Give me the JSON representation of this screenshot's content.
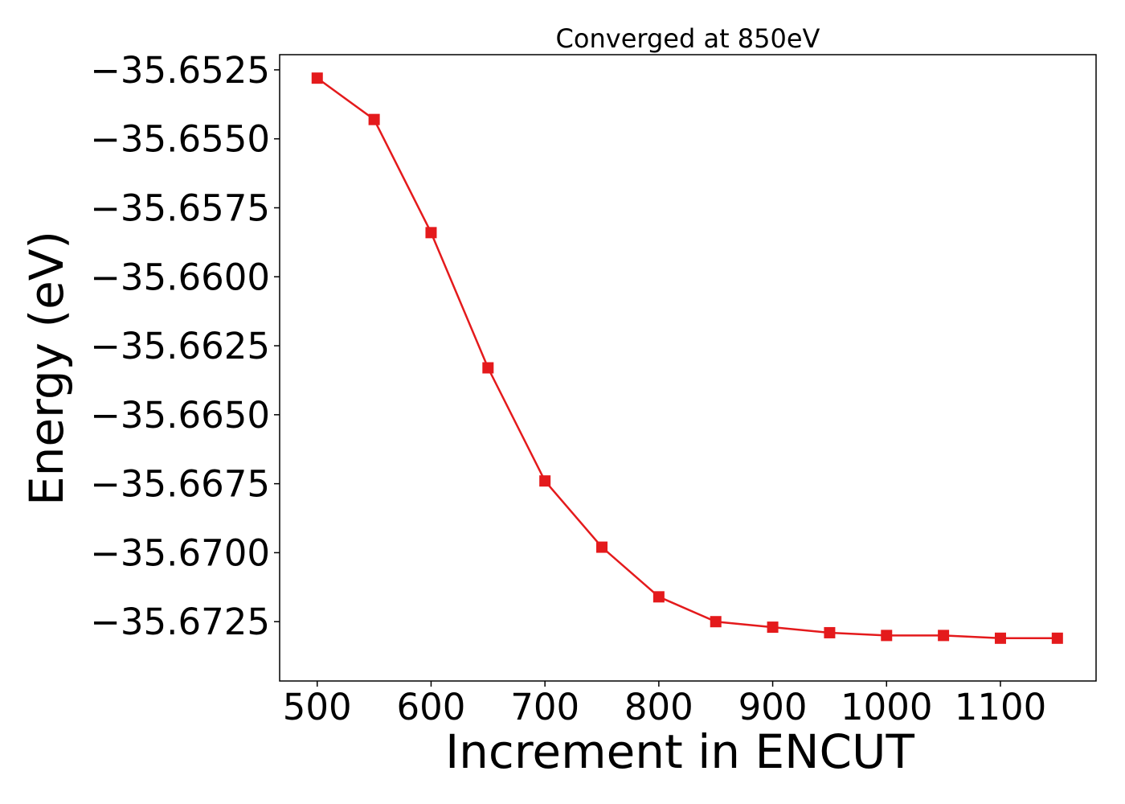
{
  "chart_data": {
    "type": "line",
    "title": "Converged at 850eV",
    "xlabel": "Increment in ENCUT",
    "ylabel": "Energy (eV)",
    "x": [
      500,
      550,
      600,
      650,
      700,
      750,
      800,
      850,
      900,
      950,
      1000,
      1050,
      1100,
      1150
    ],
    "series": [
      {
        "values": [
          -35.6528,
          -35.6543,
          -35.6584,
          -35.6633,
          -35.6674,
          -35.6698,
          -35.6716,
          -35.6725,
          -35.6727,
          -35.6729,
          -35.673,
          -35.673,
          -35.6731,
          -35.6731
        ],
        "color": "#e41a1c",
        "marker": "square"
      }
    ],
    "xticks": [
      500,
      600,
      700,
      800,
      900,
      1000,
      1100
    ],
    "xtick_labels": [
      "500",
      "600",
      "700",
      "800",
      "900",
      "1000",
      "1100"
    ],
    "yticks": [
      -35.6525,
      -35.655,
      -35.6575,
      -35.66,
      -35.6625,
      -35.665,
      -35.6675,
      -35.67,
      -35.6725
    ],
    "ytick_labels": [
      "−35.6525",
      "−35.6550",
      "−35.6575",
      "−35.6600",
      "−35.6625",
      "−35.6650",
      "−35.6675",
      "−35.6700",
      "−35.6725"
    ],
    "xlim": [
      467,
      1184
    ],
    "ylim": [
      -35.67465,
      -35.65195
    ],
    "grid": false,
    "legend": "none"
  }
}
